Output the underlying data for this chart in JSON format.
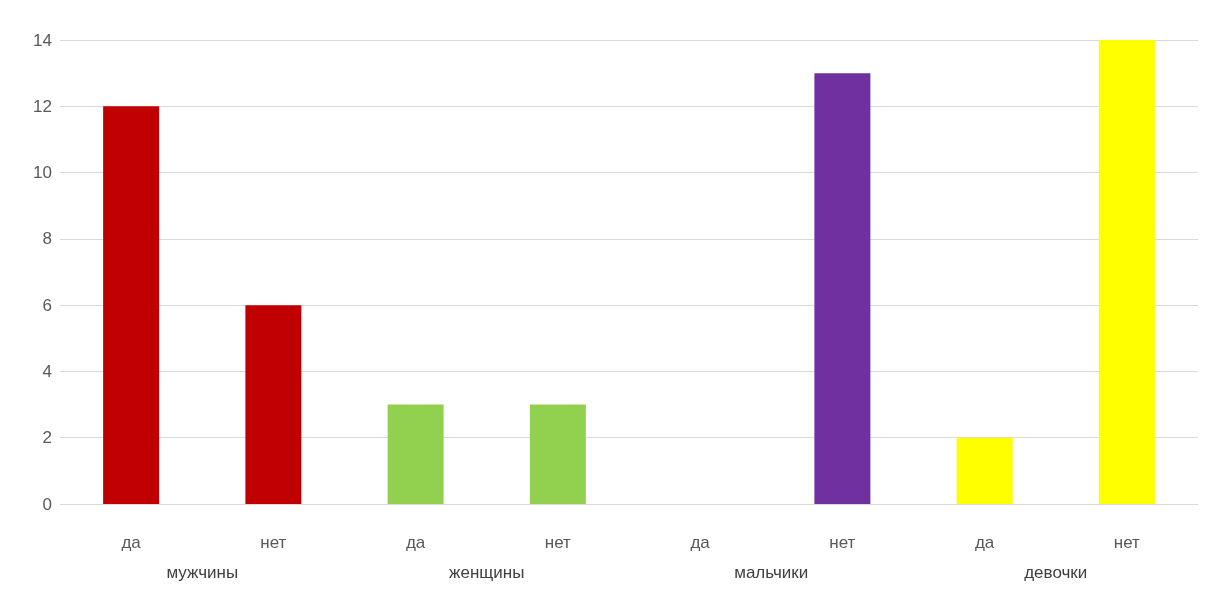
{
  "chart_data": {
    "type": "bar",
    "categories": [
      "да",
      "нет",
      "да",
      "нет",
      "да",
      "нет",
      "да",
      "нет"
    ],
    "values": [
      12,
      6,
      3,
      3,
      0,
      13,
      2,
      14
    ],
    "colors": [
      "#c00000",
      "#c00000",
      "#92d050",
      "#92d050",
      "#7030a0",
      "#7030a0",
      "#ffff00",
      "#ffff00"
    ],
    "ylim": [
      0,
      14
    ],
    "yticks": [
      0,
      2,
      4,
      6,
      8,
      10,
      12,
      14
    ],
    "grid": true,
    "annotations": [
      "мужчины",
      "женщины",
      "мальчики",
      "девочки"
    ]
  }
}
